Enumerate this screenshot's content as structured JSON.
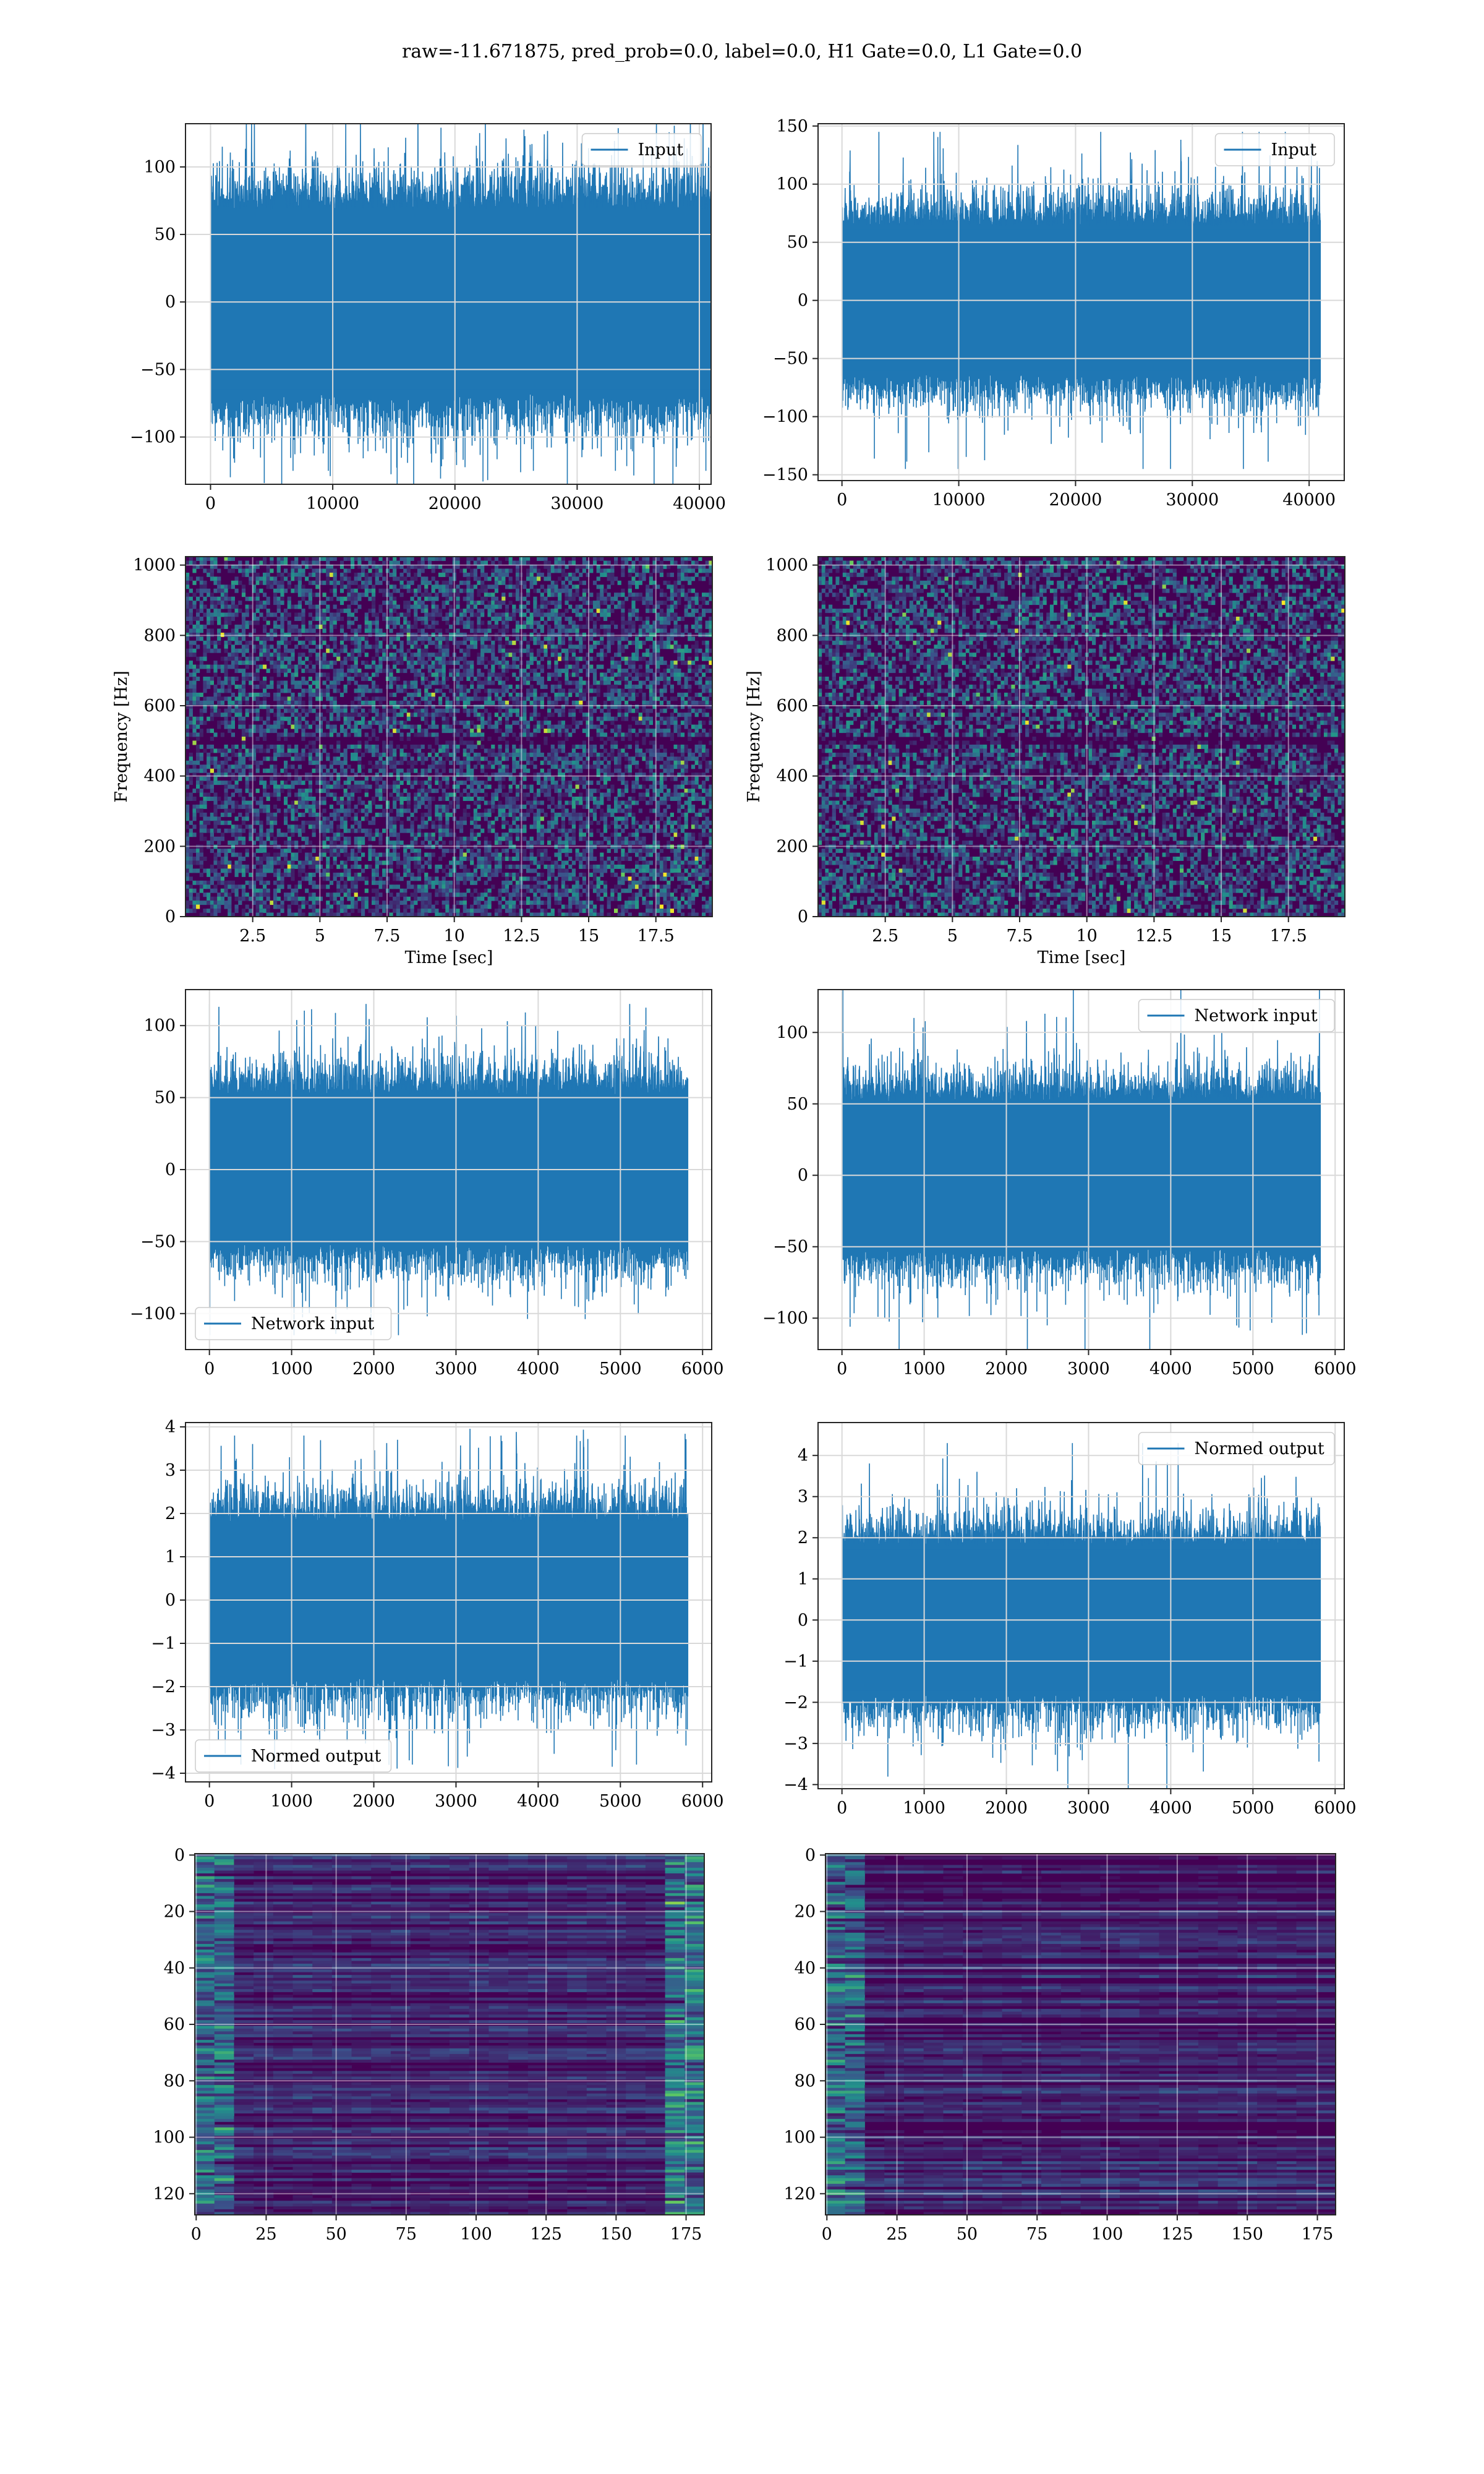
{
  "figure": {
    "suptitle": "raw=-11.671875, pred_prob=0.0, label=0.0, H1 Gate=0.0, L1 Gate=0.0",
    "colors": {
      "line": "#1f77b4",
      "grid": "#d9d9d9",
      "viridis_low": "#440154",
      "viridis_mid": "#21918c",
      "viridis_high": "#fde725"
    }
  },
  "chart_data": [
    {
      "id": "p1",
      "type": "line",
      "series": [
        {
          "name": "Input",
          "amp": 34,
          "peak": 125,
          "n": 40960
        }
      ],
      "xlim": [
        -2048,
        40960
      ],
      "ylim": [
        -135,
        132
      ],
      "xticks": [
        0,
        10000,
        20000,
        30000,
        40000
      ],
      "yticks": [
        -100,
        -50,
        0,
        50,
        100
      ],
      "legend": "upper right",
      "grid": true
    },
    {
      "id": "p2",
      "type": "line",
      "series": [
        {
          "name": "Input",
          "amp": 32,
          "peak": 145,
          "n": 40960
        }
      ],
      "xlim": [
        -2048,
        43008
      ],
      "ylim": [
        -155,
        152
      ],
      "xticks": [
        0,
        10000,
        20000,
        30000,
        40000
      ],
      "yticks": [
        -150,
        -100,
        -50,
        0,
        50,
        100,
        150
      ],
      "legend": "upper right",
      "grid": true
    },
    {
      "id": "p3",
      "type": "heatmap",
      "kind": "spectrogram",
      "xlim": [
        0,
        19.6
      ],
      "ylim": [
        0,
        1024
      ],
      "xticks": [
        2.5,
        5.0,
        7.5,
        10.0,
        12.5,
        15.0,
        17.5
      ],
      "yticks": [
        0,
        200,
        400,
        600,
        800,
        1000
      ],
      "xlabel": "Time [sec]",
      "ylabel": "Frequency [Hz]",
      "grid": true
    },
    {
      "id": "p4",
      "type": "heatmap",
      "kind": "spectrogram",
      "xlim": [
        0,
        19.6
      ],
      "ylim": [
        0,
        1024
      ],
      "xticks": [
        2.5,
        5.0,
        7.5,
        10.0,
        12.5,
        15.0,
        17.5
      ],
      "yticks": [
        0,
        200,
        400,
        600,
        800,
        1000
      ],
      "xlabel": "Time [sec]",
      "ylabel": "Frequency [Hz]",
      "grid": true
    },
    {
      "id": "p5",
      "type": "line",
      "series": [
        {
          "name": "Network input",
          "amp": 26,
          "peak": 115,
          "n": 5820
        }
      ],
      "xlim": [
        -291,
        6111
      ],
      "ylim": [
        -125,
        125
      ],
      "xticks": [
        0,
        1000,
        2000,
        3000,
        4000,
        5000,
        6000
      ],
      "yticks": [
        -100,
        -50,
        0,
        50,
        100
      ],
      "legend": "lower left",
      "grid": true
    },
    {
      "id": "p6",
      "type": "line",
      "series": [
        {
          "name": "Network input",
          "amp": 26,
          "peak": 132,
          "n": 5820
        }
      ],
      "xlim": [
        -291,
        6111
      ],
      "ylim": [
        -122,
        130
      ],
      "xticks": [
        0,
        1000,
        2000,
        3000,
        4000,
        5000,
        6000
      ],
      "yticks": [
        -100,
        -50,
        0,
        50,
        100
      ],
      "legend": "upper right",
      "grid": true
    },
    {
      "id": "p7",
      "type": "line",
      "series": [
        {
          "name": "Normed output",
          "amp": 0.9,
          "peak": 3.8,
          "n": 5820
        }
      ],
      "xlim": [
        -291,
        6111
      ],
      "ylim": [
        -4.2,
        4.1
      ],
      "xticks": [
        0,
        1000,
        2000,
        3000,
        4000,
        5000,
        6000
      ],
      "yticks": [
        -4,
        -3,
        -2,
        -1,
        0,
        1,
        2,
        3,
        4
      ],
      "legend": "lower left",
      "grid": true
    },
    {
      "id": "p8",
      "type": "line",
      "series": [
        {
          "name": "Normed output",
          "amp": 0.9,
          "peak": 4.3,
          "n": 5820
        }
      ],
      "xlim": [
        -291,
        6111
      ],
      "ylim": [
        -4.1,
        4.8
      ],
      "xticks": [
        0,
        1000,
        2000,
        3000,
        4000,
        5000,
        6000
      ],
      "yticks": [
        -4,
        -3,
        -2,
        -1,
        0,
        1,
        2,
        3,
        4
      ],
      "legend": "upper right",
      "grid": true
    },
    {
      "id": "p9",
      "type": "heatmap",
      "kind": "matrix",
      "rows": 128,
      "cols": 182,
      "xlim": [
        -0.5,
        181.5
      ],
      "ylim": [
        127.5,
        -0.5
      ],
      "xticks": [
        0,
        25,
        50,
        75,
        100,
        125,
        150,
        175
      ],
      "yticks": [
        0,
        20,
        40,
        60,
        80,
        100,
        120
      ],
      "grid": true
    },
    {
      "id": "p10",
      "type": "heatmap",
      "kind": "matrix",
      "rows": 128,
      "cols": 182,
      "xlim": [
        -0.5,
        181.5
      ],
      "ylim": [
        127.5,
        -0.5
      ],
      "xticks": [
        0,
        25,
        50,
        75,
        100,
        125,
        150,
        175
      ],
      "yticks": [
        0,
        20,
        40,
        60,
        80,
        100,
        120
      ],
      "grid": true
    }
  ]
}
